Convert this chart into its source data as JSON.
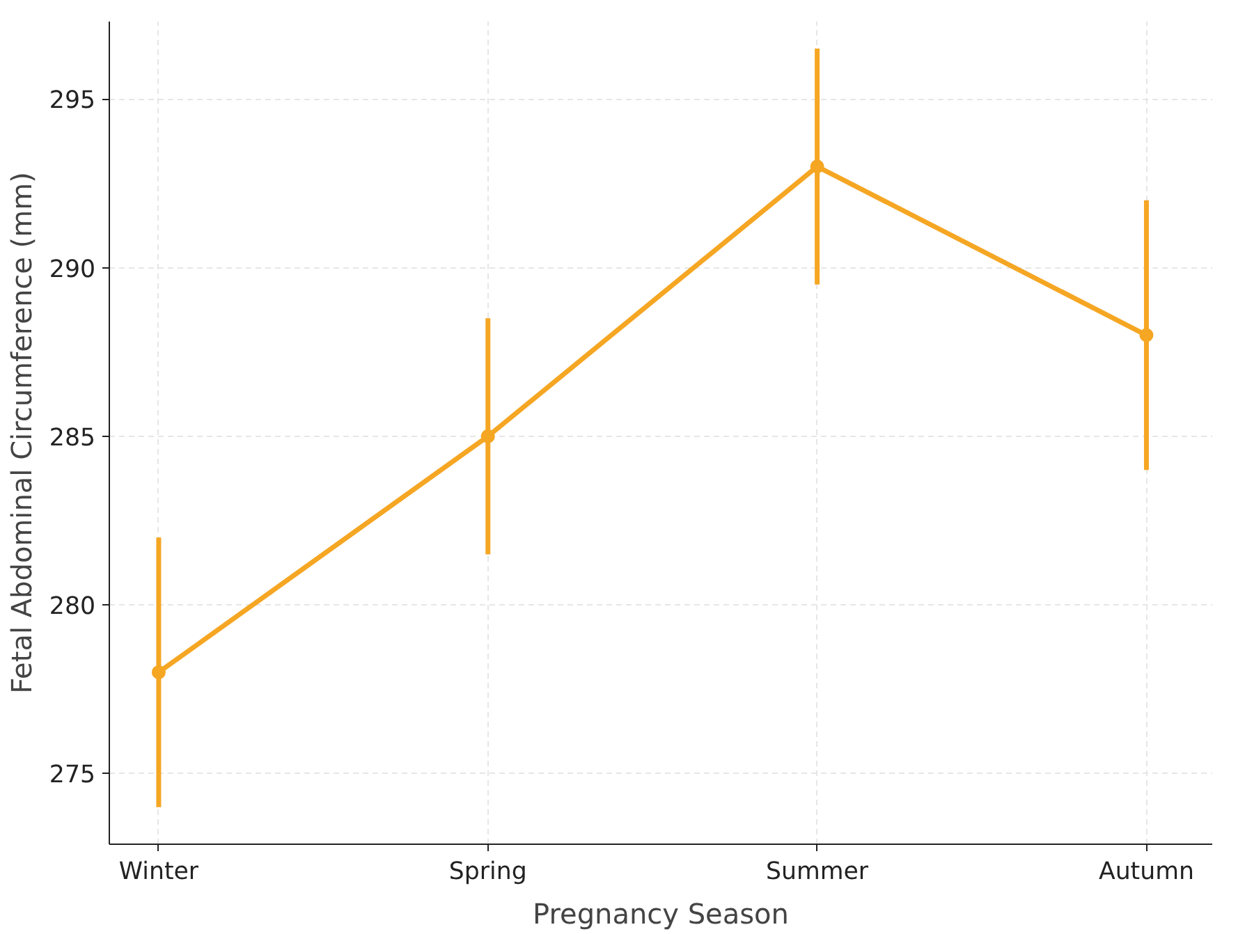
{
  "chart_data": {
    "type": "line",
    "xlabel": "Pregnancy Season",
    "ylabel": "Fetal Abdominal Circumference (mm)",
    "categories": [
      "Winter",
      "Spring",
      "Summer",
      "Autumn"
    ],
    "series": [
      {
        "color": "#f5a623",
        "values": [
          278,
          285,
          293,
          288
        ],
        "errors": [
          4,
          3.5,
          3.5,
          4
        ]
      }
    ],
    "ylim": [
      272.9,
      297.3
    ],
    "yticks": [
      275,
      280,
      285,
      290,
      295
    ],
    "grid": true,
    "marker": "circle",
    "line_style": "solid"
  }
}
